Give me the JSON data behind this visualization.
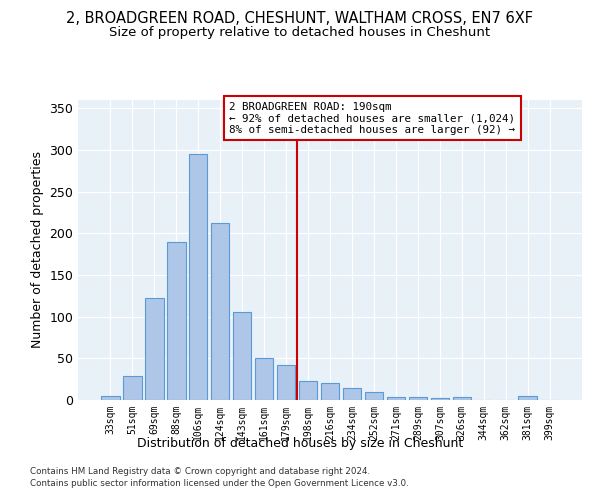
{
  "title": "2, BROADGREEN ROAD, CHESHUNT, WALTHAM CROSS, EN7 6XF",
  "subtitle": "Size of property relative to detached houses in Cheshunt",
  "xlabel": "Distribution of detached houses by size in Cheshunt",
  "ylabel": "Number of detached properties",
  "categories": [
    "33sqm",
    "51sqm",
    "69sqm",
    "88sqm",
    "106sqm",
    "124sqm",
    "143sqm",
    "161sqm",
    "179sqm",
    "198sqm",
    "216sqm",
    "234sqm",
    "252sqm",
    "271sqm",
    "289sqm",
    "307sqm",
    "326sqm",
    "344sqm",
    "362sqm",
    "381sqm",
    "399sqm"
  ],
  "bar_heights": [
    5,
    29,
    122,
    190,
    295,
    212,
    106,
    50,
    42,
    23,
    20,
    15,
    10,
    4,
    4,
    3,
    4,
    0,
    0,
    5,
    0
  ],
  "bar_color": "#aec6e8",
  "bar_edge_color": "#5b9bd5",
  "vline_pos": 8.5,
  "vline_color": "#cc0000",
  "annotation_text": "2 BROADGREEN ROAD: 190sqm\n← 92% of detached houses are smaller (1,024)\n8% of semi-detached houses are larger (92) →",
  "annotation_box_edgecolor": "#cc0000",
  "ylim": [
    0,
    360
  ],
  "yticks": [
    0,
    50,
    100,
    150,
    200,
    250,
    300,
    350
  ],
  "bg_color": "#e8f0f8",
  "footer1": "Contains HM Land Registry data © Crown copyright and database right 2024.",
  "footer2": "Contains public sector information licensed under the Open Government Licence v3.0.",
  "title_fontsize": 10.5,
  "subtitle_fontsize": 9.5
}
